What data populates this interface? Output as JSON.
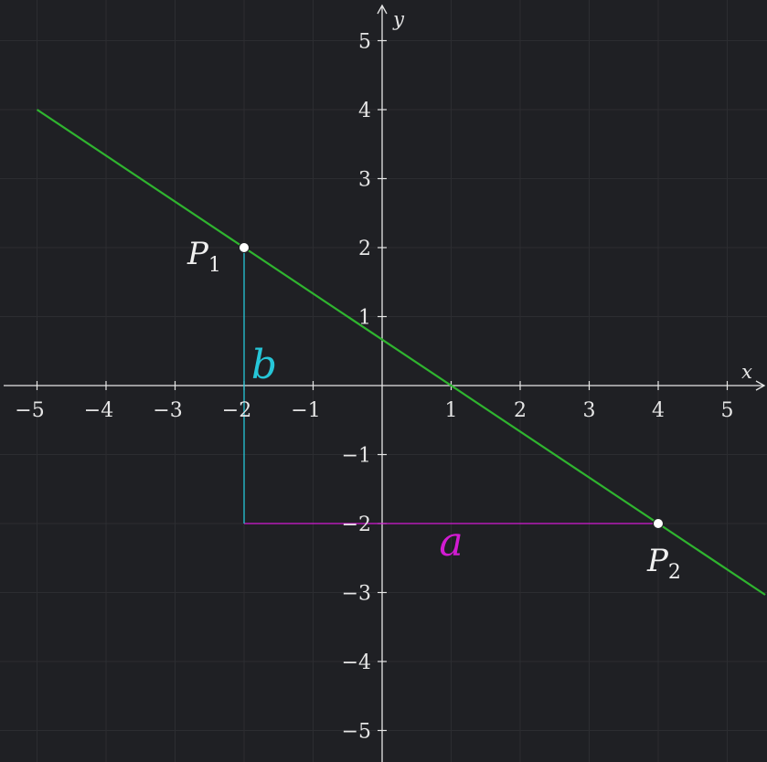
{
  "colors": {
    "background": "#1f2024",
    "grid": "#2c2d31",
    "axis": "#e6e6e6",
    "line": "#2fb52f",
    "segment_a": "#d21bd2",
    "segment_b": "#26c6d8",
    "point": "#ffffff"
  },
  "chart_data": {
    "type": "line",
    "title": "",
    "xlabel": "x",
    "ylabel": "y",
    "xlim": [
      -5.55,
      5.55
    ],
    "ylim": [
      -5.55,
      5.55
    ],
    "grid": true,
    "x_ticks": [
      -5,
      -4,
      -3,
      -2,
      -1,
      1,
      2,
      3,
      4,
      5
    ],
    "y_ticks": [
      -5,
      -4,
      -3,
      -2,
      -1,
      1,
      2,
      3,
      4,
      5
    ],
    "series": [
      {
        "x": [
          -5,
          5.55
        ],
        "y": [
          4,
          -3.0333
        ]
      }
    ],
    "points": [
      {
        "label": "P",
        "subscript": "1",
        "x": -2,
        "y": 2
      },
      {
        "label": "P",
        "subscript": "2",
        "x": 4,
        "y": -2
      }
    ],
    "segments": [
      {
        "label": "a",
        "from": [
          -2,
          -2
        ],
        "to": [
          4,
          -2
        ],
        "color": "#d21bd2"
      },
      {
        "label": "b",
        "from": [
          -2,
          -2
        ],
        "to": [
          -2,
          2
        ],
        "color": "#26c6d8"
      }
    ]
  }
}
